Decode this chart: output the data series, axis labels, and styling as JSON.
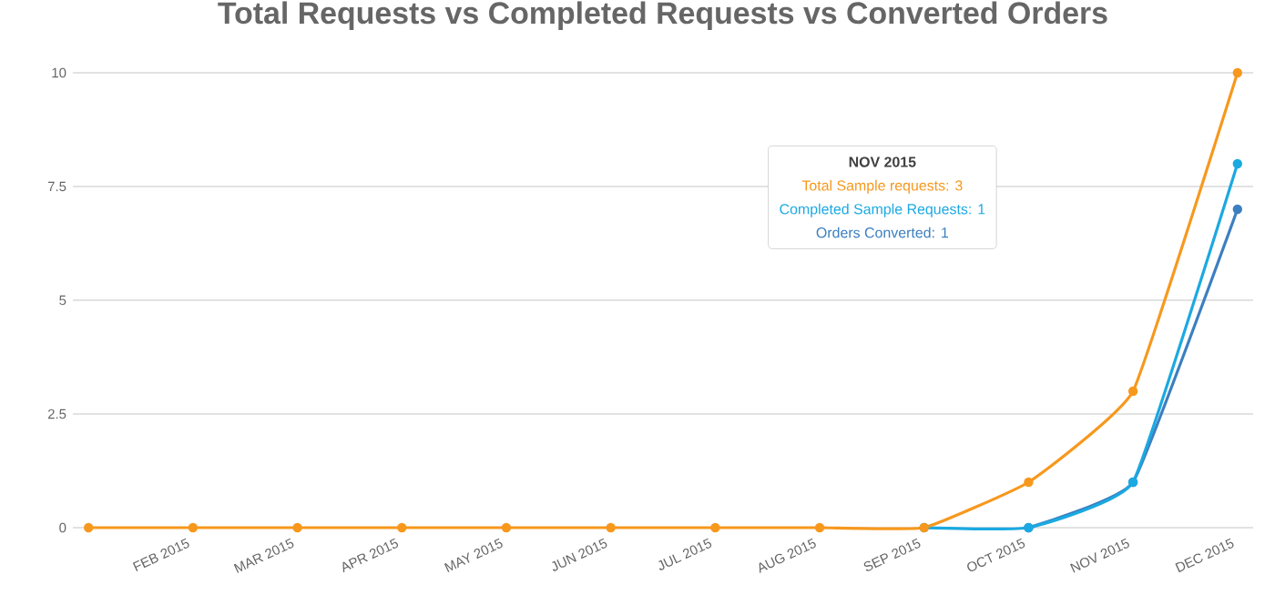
{
  "chart_data": {
    "type": "line",
    "title": "Total Requests vs Completed Requests vs Converted Orders",
    "categories": [
      null,
      "FEB 2015",
      "MAR 2015",
      "APR 2015",
      "MAY 2015",
      "JUN 2015",
      "JUL 2015",
      "AUG 2015",
      "SEP 2015",
      "OCT 2015",
      "NOV 2015",
      "DEC 2015"
    ],
    "series": [
      {
        "color": "#f7981d",
        "values": [
          0,
          0,
          0,
          0,
          0,
          0,
          0,
          0,
          0,
          1,
          3,
          10
        ]
      },
      {
        "color": "#1ba9e1",
        "values": [
          null,
          null,
          null,
          null,
          null,
          null,
          null,
          null,
          0,
          0,
          1,
          8
        ]
      },
      {
        "color": "#3c7fc0",
        "values": [
          null,
          null,
          null,
          null,
          null,
          null,
          null,
          null,
          null,
          0,
          1,
          7
        ]
      }
    ],
    "ylim": [
      0,
      10
    ],
    "yticks": [
      0,
      2.5,
      5,
      7.5,
      10
    ],
    "grid": "y",
    "marker": "circle",
    "line_style": "solid",
    "annotations": [
      "NOV 2015",
      "Total Sample requests: 3",
      "Completed Sample Requests: 1",
      "Orders Converted: 1"
    ]
  }
}
